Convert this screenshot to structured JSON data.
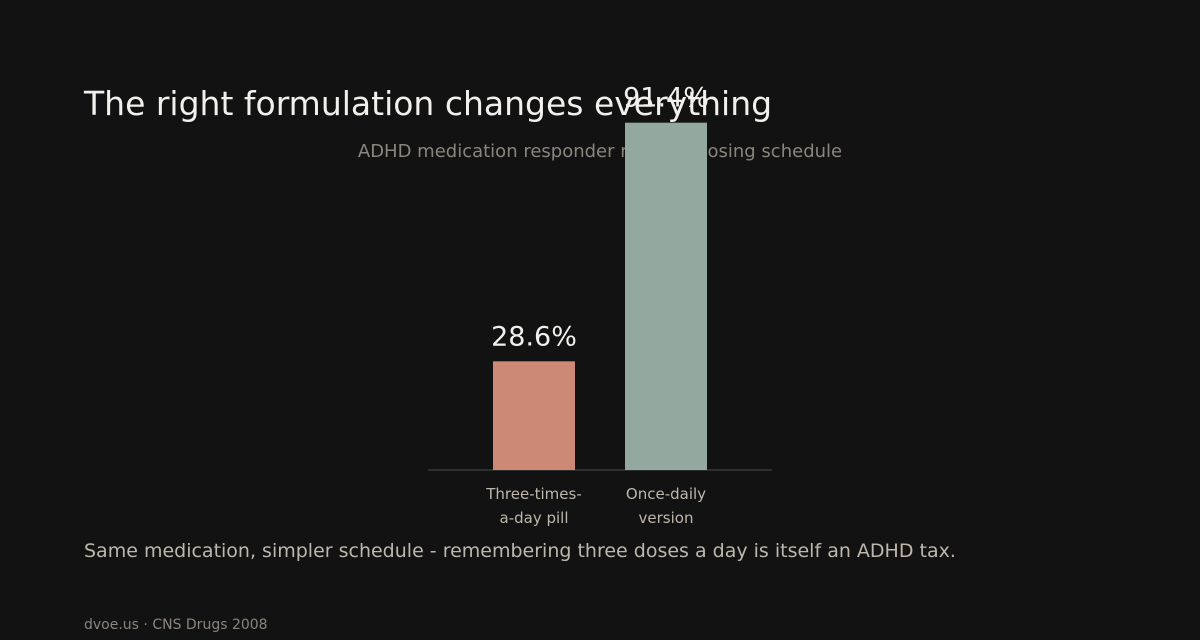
{
  "slide": {
    "title": "The right formulation changes everything",
    "caption": "Same medication, simpler schedule - remembering three doses a day is itself an ADHD tax.",
    "footer": "dvoe.us · CNS Drugs 2008"
  },
  "chart_data": {
    "type": "bar",
    "title": "ADHD medication responder rate, by dosing schedule",
    "categories": [
      [
        "Three-times-",
        "a-day pill"
      ],
      [
        "Once-daily",
        "version"
      ]
    ],
    "values": [
      28.6,
      91.4
    ],
    "value_labels": [
      "28.6%",
      "91.4%"
    ],
    "colors": [
      "#cc8a76",
      "#93a89e"
    ],
    "ylim": [
      0,
      100
    ],
    "grid": false,
    "axis_color": "#4a4a4a",
    "title_color": "#8a857d",
    "label_color": "#bdb7ac",
    "value_label_color": "#f2f0ec"
  }
}
